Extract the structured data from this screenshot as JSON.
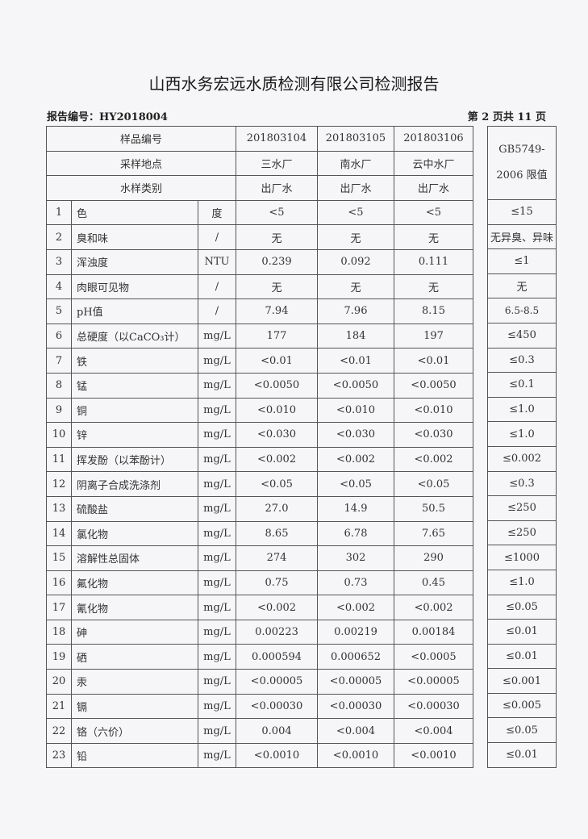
{
  "title": "山西水务宏远水质检测有限公司检测报告",
  "report_number": "报告编号：HY2018004",
  "page_info": "第 2 页共 11 页",
  "header": {
    "sample_id_label": "样品编号",
    "location_label": "采样地点",
    "type_label": "水样类别",
    "samples": [
      {
        "id": "201803104",
        "location": "三水厂",
        "type": "出厂水"
      },
      {
        "id": "201803105",
        "location": "南水厂",
        "type": "出厂水"
      },
      {
        "id": "201803106",
        "location": "云中水厂",
        "type": "出厂水"
      }
    ],
    "limit_label_1": "GB5749-",
    "limit_label_2": "2006 限值"
  },
  "rows": [
    {
      "no": "1",
      "item": "色",
      "unit": "度",
      "v": [
        "<5",
        "<5",
        "<5"
      ],
      "limit": "≤15"
    },
    {
      "no": "2",
      "item": "臭和味",
      "unit": "/",
      "v": [
        "无",
        "无",
        "无"
      ],
      "limit": "无异臭、异味"
    },
    {
      "no": "3",
      "item": "浑浊度",
      "unit": "NTU",
      "v": [
        "0.239",
        "0.092",
        "0.111"
      ],
      "limit": "≤1"
    },
    {
      "no": "4",
      "item": "肉眼可见物",
      "unit": "/",
      "v": [
        "无",
        "无",
        "无"
      ],
      "limit": "无"
    },
    {
      "no": "5",
      "item": "pH值",
      "unit": "/",
      "v": [
        "7.94",
        "7.96",
        "8.15"
      ],
      "limit": "6.5-8.5"
    },
    {
      "no": "6",
      "item": "总硬度（以CaCO₃计）",
      "unit": "mg/L",
      "v": [
        "177",
        "184",
        "197"
      ],
      "limit": "≤450"
    },
    {
      "no": "7",
      "item": "铁",
      "unit": "mg/L",
      "v": [
        "<0.01",
        "<0.01",
        "<0.01"
      ],
      "limit": "≤0.3"
    },
    {
      "no": "8",
      "item": "锰",
      "unit": "mg/L",
      "v": [
        "<0.0050",
        "<0.0050",
        "<0.0050"
      ],
      "limit": "≤0.1"
    },
    {
      "no": "9",
      "item": "铜",
      "unit": "mg/L",
      "v": [
        "<0.010",
        "<0.010",
        "<0.010"
      ],
      "limit": "≤1.0"
    },
    {
      "no": "10",
      "item": "锌",
      "unit": "mg/L",
      "v": [
        "<0.030",
        "<0.030",
        "<0.030"
      ],
      "limit": "≤1.0"
    },
    {
      "no": "11",
      "item": "挥发酚（以苯酚计）",
      "unit": "mg/L",
      "v": [
        "<0.002",
        "<0.002",
        "<0.002"
      ],
      "limit": "≤0.002"
    },
    {
      "no": "12",
      "item": "阴离子合成洗涤剂",
      "unit": "mg/L",
      "v": [
        "<0.05",
        "<0.05",
        "<0.05"
      ],
      "limit": "≤0.3"
    },
    {
      "no": "13",
      "item": "硫酸盐",
      "unit": "mg/L",
      "v": [
        "27.0",
        "14.9",
        "50.5"
      ],
      "limit": "≤250"
    },
    {
      "no": "14",
      "item": "氯化物",
      "unit": "mg/L",
      "v": [
        "8.65",
        "6.78",
        "7.65"
      ],
      "limit": "≤250"
    },
    {
      "no": "15",
      "item": "溶解性总固体",
      "unit": "mg/L",
      "v": [
        "274",
        "302",
        "290"
      ],
      "limit": "≤1000"
    },
    {
      "no": "16",
      "item": "氟化物",
      "unit": "mg/L",
      "v": [
        "0.75",
        "0.73",
        "0.45"
      ],
      "limit": "≤1.0"
    },
    {
      "no": "17",
      "item": "氰化物",
      "unit": "mg/L",
      "v": [
        "<0.002",
        "<0.002",
        "<0.002"
      ],
      "limit": "≤0.05"
    },
    {
      "no": "18",
      "item": "砷",
      "unit": "mg/L",
      "v": [
        "0.00223",
        "0.00219",
        "0.00184"
      ],
      "limit": "≤0.01"
    },
    {
      "no": "19",
      "item": "硒",
      "unit": "mg/L",
      "v": [
        "0.000594",
        "0.000652",
        "<0.0005"
      ],
      "limit": "≤0.01"
    },
    {
      "no": "20",
      "item": "汞",
      "unit": "mg/L",
      "v": [
        "<0.00005",
        "<0.00005",
        "<0.00005"
      ],
      "limit": "≤0.001"
    },
    {
      "no": "21",
      "item": "镉",
      "unit": "mg/L",
      "v": [
        "<0.00030",
        "<0.00030",
        "<0.00030"
      ],
      "limit": "≤0.005"
    },
    {
      "no": "22",
      "item": "铬（六价）",
      "unit": "mg/L",
      "v": [
        "0.004",
        "<0.004",
        "<0.004"
      ],
      "limit": "≤0.05"
    },
    {
      "no": "23",
      "item": "铅",
      "unit": "mg/L",
      "v": [
        "<0.0010",
        "<0.0010",
        "<0.0010"
      ],
      "limit": "≤0.01"
    }
  ]
}
